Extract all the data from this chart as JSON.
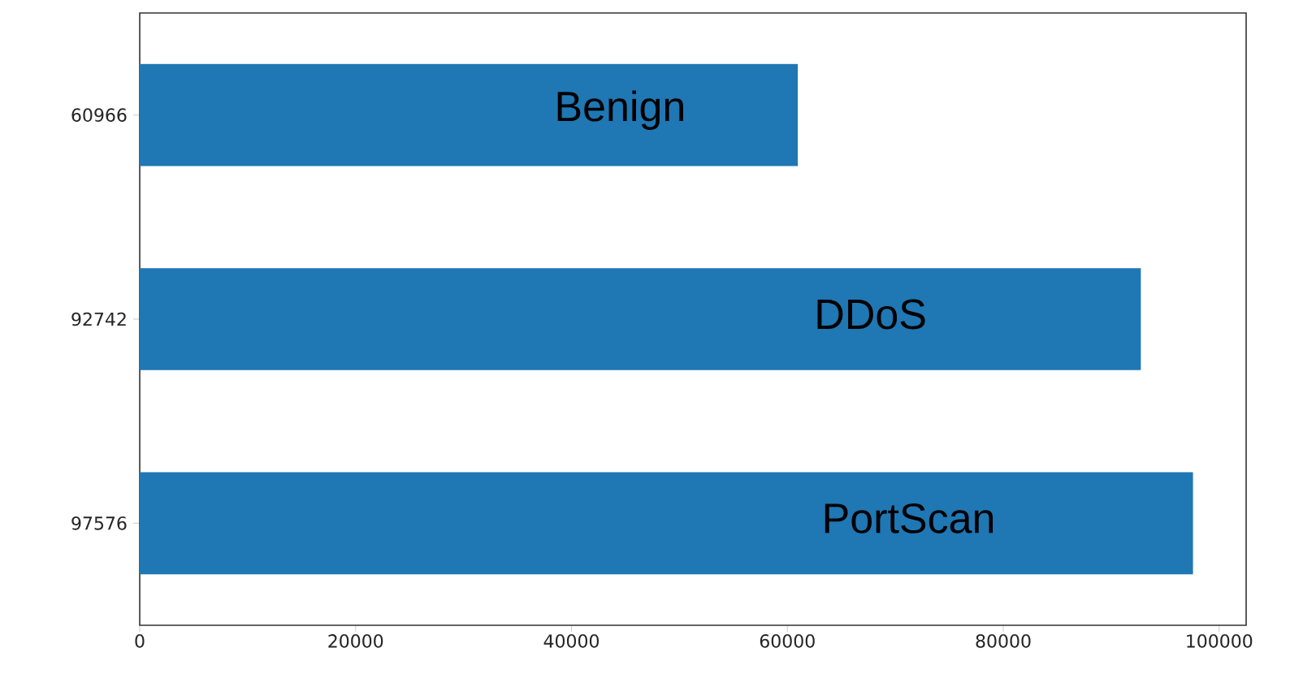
{
  "chart_data": {
    "type": "bar",
    "orientation": "horizontal",
    "categories": [
      "60966",
      "92742",
      "97576"
    ],
    "values": [
      60966,
      92742,
      97576
    ],
    "color": "#1f77b4",
    "xlim": [
      0,
      102500
    ],
    "xticks": [
      0,
      20000,
      40000,
      60000,
      80000,
      100000
    ],
    "annotations": [
      "Benign",
      "DDoS",
      "PortScan"
    ],
    "grid": false
  }
}
